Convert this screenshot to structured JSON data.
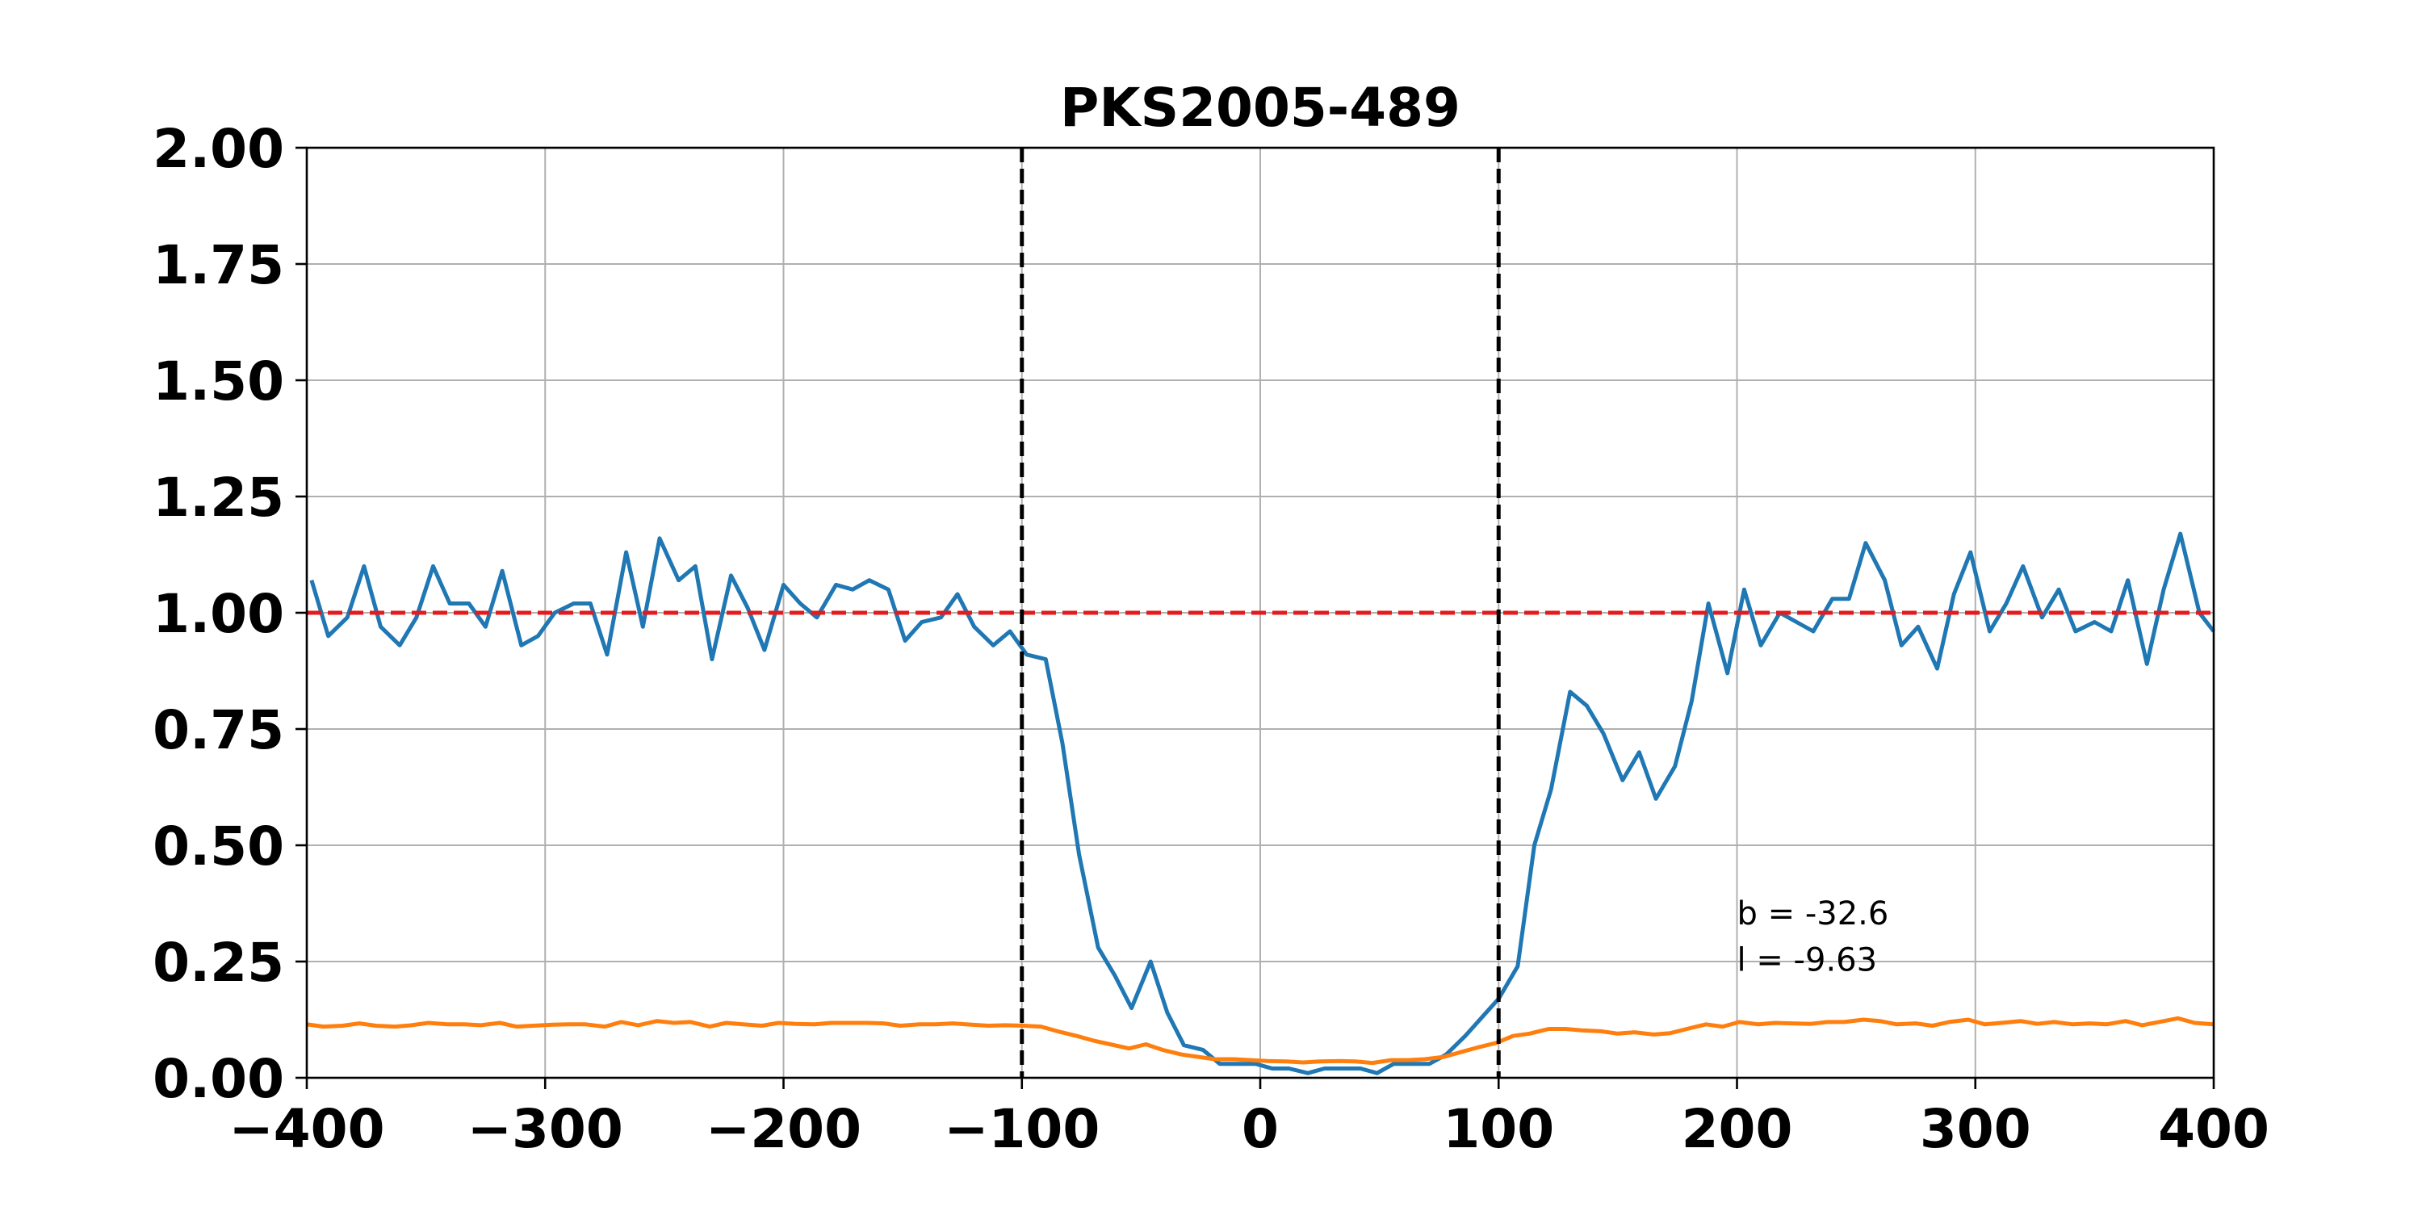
{
  "chart_data": {
    "type": "line",
    "title": "PKS2005-489",
    "xlabel": "",
    "ylabel": "",
    "xlim": [
      -400,
      400
    ],
    "ylim": [
      0,
      2
    ],
    "x_ticks": [
      -400,
      -300,
      -200,
      -100,
      0,
      100,
      200,
      300,
      400
    ],
    "x_tick_labels": [
      "−400",
      "−300",
      "−200",
      "−100",
      "0",
      "100",
      "200",
      "300",
      "400"
    ],
    "y_ticks": [
      0,
      0.25,
      0.5,
      0.75,
      1.0,
      1.25,
      1.5,
      1.75,
      2.0
    ],
    "y_tick_labels": [
      "0.00",
      "0.25",
      "0.50",
      "0.75",
      "1.00",
      "1.25",
      "1.50",
      "1.75",
      "2.00"
    ],
    "grid": true,
    "colors": {
      "absorption": "#1f77b4",
      "error": "#ff7f0e",
      "reference": "#e41a1c",
      "vlines": "#000000",
      "grid": "#b0b0b0"
    },
    "series": [
      {
        "x": [
          -398,
          -391,
          -383,
          -376,
          -369,
          -361,
          -354,
          -347,
          -340,
          -332,
          -325,
          -318,
          -310,
          -303,
          -296,
          -288,
          -281,
          -274,
          -266,
          -259,
          -252,
          -244,
          -237,
          -230,
          -222,
          -215,
          -208,
          -200,
          -193,
          -186,
          -178,
          -171,
          -164,
          -156,
          -149,
          -142,
          -134,
          -127,
          -120,
          -112,
          -105,
          -98,
          -90,
          -83,
          -76,
          -68,
          -61,
          -54,
          -46,
          -39,
          -32,
          -24,
          -17,
          -10,
          -2,
          5,
          12,
          20,
          27,
          34,
          42,
          49,
          56,
          64,
          71,
          78,
          86,
          93,
          100,
          108,
          115,
          122,
          130,
          137,
          144,
          152,
          159,
          166,
          174,
          181,
          188,
          196,
          203,
          210,
          218,
          225,
          232,
          240,
          247,
          254,
          262,
          269,
          276,
          284,
          291,
          298,
          306,
          313,
          320,
          328,
          335,
          342,
          350,
          357,
          364,
          372,
          379,
          386,
          394,
          400
        ],
        "values": [
          1.07,
          0.95,
          0.99,
          1.1,
          0.97,
          0.93,
          0.99,
          1.1,
          1.02,
          1.02,
          0.97,
          1.09,
          0.93,
          0.95,
          1.0,
          1.02,
          1.02,
          0.91,
          1.13,
          0.97,
          1.16,
          1.07,
          1.1,
          0.9,
          1.08,
          1.01,
          0.92,
          1.06,
          1.02,
          0.99,
          1.06,
          1.05,
          1.07,
          1.05,
          0.94,
          0.98,
          0.99,
          1.04,
          0.97,
          0.93,
          0.96,
          0.91,
          0.9,
          0.72,
          0.48,
          0.28,
          0.22,
          0.15,
          0.25,
          0.14,
          0.07,
          0.06,
          0.03,
          0.03,
          0.03,
          0.02,
          0.02,
          0.01,
          0.02,
          0.02,
          0.02,
          0.01,
          0.03,
          0.03,
          0.03,
          0.05,
          0.09,
          0.13,
          0.17,
          0.24,
          0.5,
          0.62,
          0.83,
          0.8,
          0.74,
          0.64,
          0.7,
          0.6,
          0.67,
          0.81,
          1.02,
          0.87,
          1.05,
          0.93,
          1.0,
          0.98,
          0.96,
          1.03,
          1.03,
          1.15,
          1.07,
          0.93,
          0.97,
          0.88,
          1.04,
          1.13,
          0.96,
          1.02,
          1.1,
          0.99,
          1.05,
          0.96,
          0.98,
          0.96,
          1.07,
          0.89,
          1.05,
          1.17,
          1.0,
          0.96
        ]
      },
      {
        "x": [
          -400,
          -393,
          -385,
          -378,
          -371,
          -363,
          -356,
          -349,
          -341,
          -334,
          -327,
          -319,
          -312,
          -305,
          -297,
          -290,
          -283,
          -275,
          -268,
          -261,
          -253,
          -246,
          -239,
          -231,
          -224,
          -217,
          -209,
          -202,
          -195,
          -187,
          -180,
          -173,
          -165,
          -158,
          -151,
          -143,
          -136,
          -129,
          -121,
          -114,
          -107,
          -99,
          -92,
          -85,
          -77,
          -70,
          -63,
          -55,
          -48,
          -41,
          -33,
          -26,
          -19,
          -11,
          -4,
          3,
          11,
          18,
          25,
          33,
          40,
          47,
          55,
          62,
          69,
          77,
          84,
          91,
          99,
          106,
          113,
          121,
          128,
          135,
          143,
          150,
          157,
          165,
          172,
          179,
          187,
          194,
          201,
          209,
          216,
          223,
          231,
          238,
          245,
          253,
          260,
          267,
          275,
          282,
          289,
          297,
          304,
          311,
          319,
          326,
          333,
          341,
          348,
          355,
          363,
          370,
          377,
          385,
          392,
          400
        ],
        "values": [
          0.115,
          0.11,
          0.112,
          0.117,
          0.112,
          0.11,
          0.113,
          0.118,
          0.115,
          0.115,
          0.113,
          0.118,
          0.11,
          0.112,
          0.114,
          0.115,
          0.115,
          0.11,
          0.12,
          0.113,
          0.122,
          0.118,
          0.12,
          0.11,
          0.118,
          0.115,
          0.112,
          0.118,
          0.116,
          0.115,
          0.118,
          0.118,
          0.118,
          0.117,
          0.112,
          0.115,
          0.115,
          0.117,
          0.114,
          0.112,
          0.113,
          0.112,
          0.11,
          0.1,
          0.09,
          0.08,
          0.072,
          0.063,
          0.072,
          0.06,
          0.05,
          0.045,
          0.04,
          0.04,
          0.038,
          0.036,
          0.035,
          0.033,
          0.035,
          0.036,
          0.035,
          0.032,
          0.038,
          0.038,
          0.04,
          0.045,
          0.055,
          0.065,
          0.075,
          0.09,
          0.095,
          0.105,
          0.105,
          0.102,
          0.1,
          0.095,
          0.098,
          0.093,
          0.096,
          0.105,
          0.115,
          0.11,
          0.12,
          0.115,
          0.118,
          0.117,
          0.116,
          0.12,
          0.12,
          0.125,
          0.122,
          0.115,
          0.117,
          0.112,
          0.12,
          0.125,
          0.115,
          0.118,
          0.122,
          0.116,
          0.12,
          0.115,
          0.117,
          0.115,
          0.122,
          0.113,
          0.12,
          0.128,
          0.118,
          0.115
        ]
      }
    ],
    "reference_line": {
      "y": 1.0
    },
    "vertical_lines": [
      -100,
      100
    ],
    "annotations": [
      {
        "text": "b = -32.6",
        "x": 200,
        "y": 0.33
      },
      {
        "text": "l = -9.63",
        "x": 200,
        "y": 0.23
      }
    ]
  }
}
